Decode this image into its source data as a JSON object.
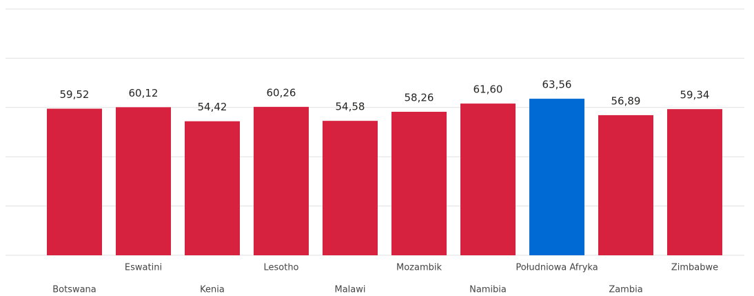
{
  "chart_data": {
    "type": "bar",
    "categories": [
      "Botswana",
      "Eswatini",
      "Kenia",
      "Lesotho",
      "Malawi",
      "Mozambik",
      "Namibia",
      "Południowa Afryka",
      "Zambia",
      "Zimbabwe"
    ],
    "values": [
      59.52,
      60.12,
      54.42,
      60.26,
      54.58,
      58.26,
      61.6,
      63.56,
      56.89,
      59.34
    ],
    "value_labels": [
      "59,52",
      "60,12",
      "54,42",
      "60,26",
      "54,58",
      "58,26",
      "61,60",
      "63,56",
      "56,89",
      "59,34"
    ],
    "colors": [
      "#d6223f",
      "#d6223f",
      "#d6223f",
      "#d6223f",
      "#d6223f",
      "#d6223f",
      "#d6223f",
      "#006ad4",
      "#d6223f",
      "#d6223f"
    ],
    "ylim": [
      0,
      100
    ],
    "yticks": [
      0,
      20,
      40,
      60,
      80,
      100
    ],
    "grid": true
  }
}
